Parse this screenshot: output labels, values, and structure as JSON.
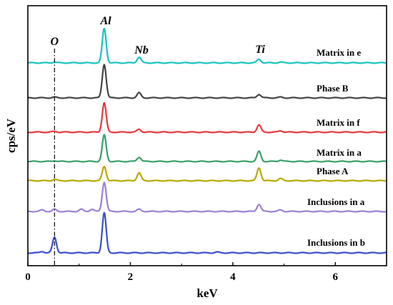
{
  "chart_data": {
    "type": "line",
    "title": "",
    "xlabel": "keV",
    "ylabel": "cps/eV",
    "xlim": [
      0,
      7
    ],
    "xticks": [
      "0",
      "2",
      "4",
      "6"
    ],
    "xtick_values": [
      0,
      2,
      4,
      6
    ],
    "grid": false,
    "reference_line": {
      "label": "O",
      "x": 0.52,
      "style": "dash-dot"
    },
    "element_labels": [
      {
        "label": "Al",
        "x": 1.49
      },
      {
        "label": "Nb",
        "x": 2.17
      },
      {
        "label": "Ti",
        "x": 4.51
      }
    ],
    "series": [
      {
        "name": "Matrix in e",
        "color": "#19c2c2",
        "peaks": [
          {
            "x": 0.52,
            "h": 1
          },
          {
            "x": 1.49,
            "h": 48
          },
          {
            "x": 2.17,
            "h": 8
          },
          {
            "x": 4.51,
            "h": 5
          },
          {
            "x": 4.93,
            "h": 1
          }
        ]
      },
      {
        "name": "Phase B",
        "color": "#444444",
        "peaks": [
          {
            "x": 0.52,
            "h": 1
          },
          {
            "x": 1.49,
            "h": 47
          },
          {
            "x": 2.17,
            "h": 7
          },
          {
            "x": 4.51,
            "h": 5
          },
          {
            "x": 4.93,
            "h": 1
          }
        ]
      },
      {
        "name": "Matrix in f",
        "color": "#e8383d",
        "peaks": [
          {
            "x": 0.52,
            "h": 1
          },
          {
            "x": 1.49,
            "h": 41
          },
          {
            "x": 2.17,
            "h": 4
          },
          {
            "x": 4.51,
            "h": 10
          },
          {
            "x": 4.93,
            "h": 2
          }
        ]
      },
      {
        "name": "Matrix in a",
        "color": "#3a9e6b",
        "peaks": [
          {
            "x": 0.52,
            "h": 1
          },
          {
            "x": 1.49,
            "h": 37
          },
          {
            "x": 2.17,
            "h": 6
          },
          {
            "x": 4.51,
            "h": 14
          },
          {
            "x": 4.93,
            "h": 2
          }
        ]
      },
      {
        "name": "Phase A",
        "color": "#b8a800",
        "peaks": [
          {
            "x": 0.52,
            "h": 2
          },
          {
            "x": 1.49,
            "h": 20
          },
          {
            "x": 2.17,
            "h": 11
          },
          {
            "x": 4.51,
            "h": 18
          },
          {
            "x": 4.93,
            "h": 3
          }
        ]
      },
      {
        "name": "Inclusions in a",
        "color": "#9d7fd8",
        "peaks": [
          {
            "x": 0.28,
            "h": 2
          },
          {
            "x": 0.52,
            "h": 3
          },
          {
            "x": 1.04,
            "h": 3
          },
          {
            "x": 1.25,
            "h": 3
          },
          {
            "x": 1.49,
            "h": 41
          },
          {
            "x": 2.17,
            "h": 3
          },
          {
            "x": 4.51,
            "h": 10
          },
          {
            "x": 4.93,
            "h": 2
          }
        ]
      },
      {
        "name": "Inclusions in b",
        "color": "#3a4fd0",
        "peaks": [
          {
            "x": 0.28,
            "h": 2
          },
          {
            "x": 0.52,
            "h": 22
          },
          {
            "x": 1.49,
            "h": 56
          },
          {
            "x": 3.69,
            "h": 1
          }
        ]
      }
    ]
  }
}
